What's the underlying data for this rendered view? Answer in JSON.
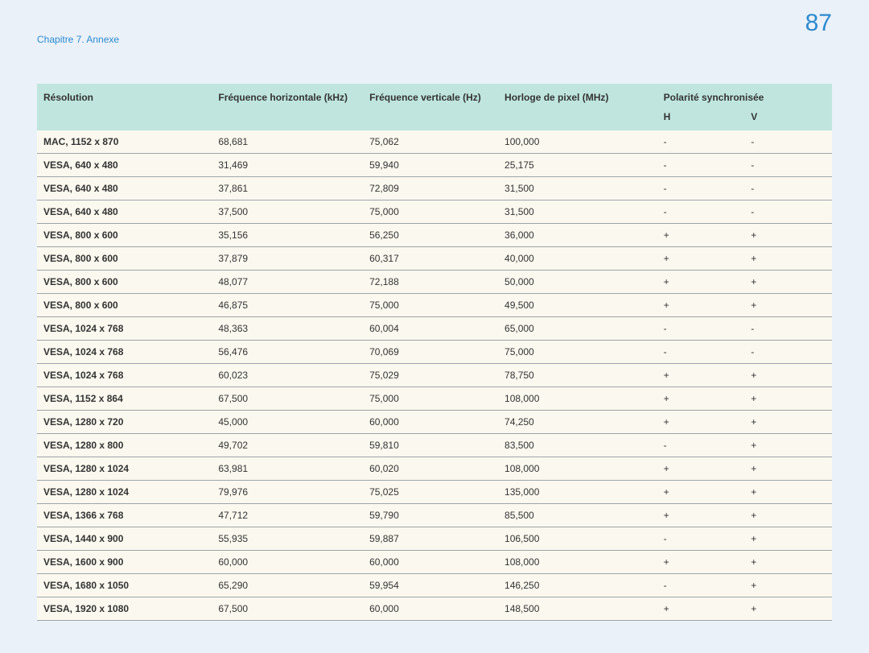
{
  "page_number": "87",
  "chapter_title": "Chapitre 7. Annexe",
  "colors": {
    "page_bg": "#eaf1f8",
    "accent": "#2e8ad0",
    "header_bg": "#bfe5de",
    "row_bg": "#fbf8ef",
    "row_border": "#9fa4a8",
    "text": "#333333"
  },
  "table": {
    "headers": {
      "resolution": "Résolution",
      "hfreq": "Fréquence horizontale (kHz)",
      "vfreq": "Fréquence verticale (Hz)",
      "clock": "Horloge de pixel (MHz)",
      "polarity": "Polarité synchronisée",
      "pol_h": "H",
      "pol_v": "V"
    },
    "rows": [
      {
        "res": "MAC, 1152 x 870",
        "hf": "68,681",
        "vf": "75,062",
        "clk": "100,000",
        "ph": "-",
        "pv": "-"
      },
      {
        "res": "VESA, 640 x 480",
        "hf": "31,469",
        "vf": "59,940",
        "clk": "25,175",
        "ph": "-",
        "pv": "-"
      },
      {
        "res": "VESA, 640 x 480",
        "hf": "37,861",
        "vf": "72,809",
        "clk": "31,500",
        "ph": "-",
        "pv": "-"
      },
      {
        "res": "VESA, 640 x 480",
        "hf": "37,500",
        "vf": "75,000",
        "clk": "31,500",
        "ph": "-",
        "pv": "-"
      },
      {
        "res": "VESA, 800 x 600",
        "hf": "35,156",
        "vf": "56,250",
        "clk": "36,000",
        "ph": "+",
        "pv": "+"
      },
      {
        "res": "VESA, 800 x 600",
        "hf": "37,879",
        "vf": "60,317",
        "clk": "40,000",
        "ph": "+",
        "pv": "+"
      },
      {
        "res": "VESA, 800 x 600",
        "hf": "48,077",
        "vf": "72,188",
        "clk": "50,000",
        "ph": "+",
        "pv": "+"
      },
      {
        "res": "VESA, 800 x 600",
        "hf": "46,875",
        "vf": "75,000",
        "clk": "49,500",
        "ph": "+",
        "pv": "+"
      },
      {
        "res": "VESA, 1024 x 768",
        "hf": "48,363",
        "vf": "60,004",
        "clk": "65,000",
        "ph": "-",
        "pv": "-"
      },
      {
        "res": "VESA, 1024 x 768",
        "hf": "56,476",
        "vf": "70,069",
        "clk": "75,000",
        "ph": "-",
        "pv": "-"
      },
      {
        "res": "VESA, 1024 x 768",
        "hf": "60,023",
        "vf": "75,029",
        "clk": "78,750",
        "ph": "+",
        "pv": "+"
      },
      {
        "res": "VESA, 1152 x 864",
        "hf": "67,500",
        "vf": "75,000",
        "clk": "108,000",
        "ph": "+",
        "pv": "+"
      },
      {
        "res": "VESA, 1280 x 720",
        "hf": "45,000",
        "vf": "60,000",
        "clk": "74,250",
        "ph": "+",
        "pv": "+"
      },
      {
        "res": "VESA, 1280 x 800",
        "hf": "49,702",
        "vf": "59,810",
        "clk": "83,500",
        "ph": "-",
        "pv": "+"
      },
      {
        "res": "VESA, 1280 x 1024",
        "hf": "63,981",
        "vf": "60,020",
        "clk": "108,000",
        "ph": "+",
        "pv": "+"
      },
      {
        "res": "VESA, 1280 x 1024",
        "hf": "79,976",
        "vf": "75,025",
        "clk": "135,000",
        "ph": "+",
        "pv": "+"
      },
      {
        "res": "VESA, 1366 x 768",
        "hf": "47,712",
        "vf": "59,790",
        "clk": "85,500",
        "ph": "+",
        "pv": "+"
      },
      {
        "res": "VESA, 1440 x 900",
        "hf": "55,935",
        "vf": "59,887",
        "clk": "106,500",
        "ph": "-",
        "pv": "+"
      },
      {
        "res": "VESA, 1600 x 900",
        "hf": "60,000",
        "vf": "60,000",
        "clk": "108,000",
        "ph": "+",
        "pv": "+"
      },
      {
        "res": "VESA, 1680 x 1050",
        "hf": "65,290",
        "vf": "59,954",
        "clk": "146,250",
        "ph": "-",
        "pv": "+"
      },
      {
        "res": "VESA, 1920 x 1080",
        "hf": "67,500",
        "vf": "60,000",
        "clk": "148,500",
        "ph": "+",
        "pv": "+"
      }
    ]
  }
}
